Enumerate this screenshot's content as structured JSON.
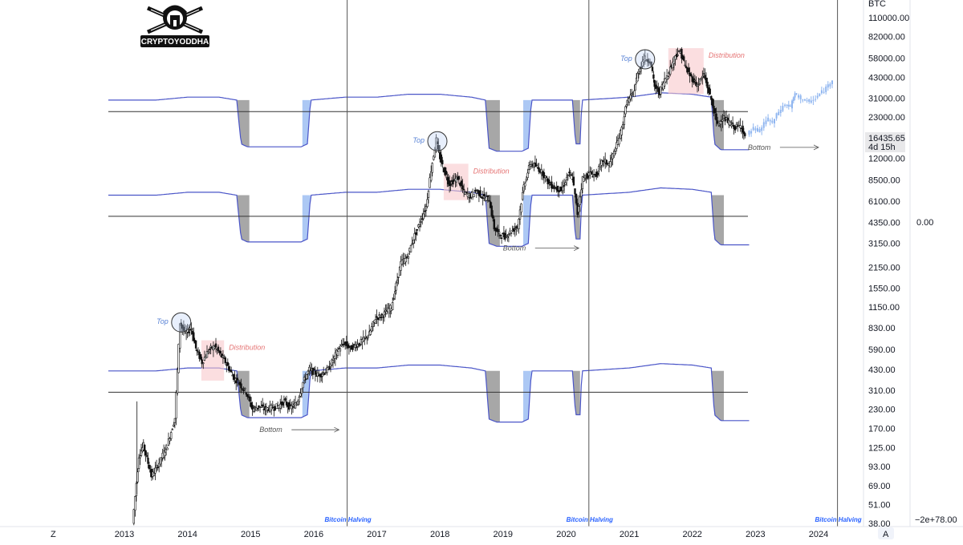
{
  "logo": {
    "text": "CRYPTOYODDHA"
  },
  "axis_unit": "BTC",
  "right_axis": {
    "label": "0.00",
    "bottom_label": "−2e+78.00"
  },
  "corner_buttons": {
    "left": "Z",
    "right": "A"
  },
  "last_price": {
    "value": "16435.65",
    "countdown": "4d 15h"
  },
  "colors": {
    "band_line": "#4a55c8",
    "band_fill_gray": "#8a8a8a",
    "band_fill_blue": "#90b6f0",
    "candle": "#111111",
    "top_marker": "#2962ff",
    "distribution_fill": "#f9c8cc",
    "distribution_text": "#e57373",
    "halving_line": "#555555",
    "halving_text": "#2962ff",
    "projection": "#90b6f0"
  },
  "chart_data": {
    "type": "candlestick",
    "title": "",
    "xlabel": "",
    "ylabel": "BTC",
    "y_scale": "log",
    "ylim": [
      36,
      130000
    ],
    "xlim": [
      2012.5,
      2025.2
    ],
    "grid": false,
    "x_ticks": [
      "2013",
      "2014",
      "2015",
      "2016",
      "2017",
      "2018",
      "2019",
      "2020",
      "2021",
      "2022",
      "2023",
      "2024"
    ],
    "y_ticks": [
      "110000.00",
      "82000.00",
      "58000.00",
      "43000.00",
      "31000.00",
      "23000.00",
      "12000.00",
      "8500.00",
      "6100.00",
      "4350.00",
      "3150.00",
      "2150.00",
      "1550.00",
      "1150.00",
      "830.00",
      "590.00",
      "430.00",
      "310.00",
      "230.00",
      "170.00",
      "125.00",
      "93.00",
      "69.00",
      "51.00",
      "38.00"
    ],
    "price_path": [
      [
        2013.15,
        38
      ],
      [
        2013.25,
        110
      ],
      [
        2013.32,
        130
      ],
      [
        2013.45,
        80
      ],
      [
        2013.55,
        95
      ],
      [
        2013.7,
        130
      ],
      [
        2013.82,
        200
      ],
      [
        2013.9,
        900
      ],
      [
        2013.98,
        760
      ],
      [
        2014.08,
        820
      ],
      [
        2014.15,
        600
      ],
      [
        2014.25,
        480
      ],
      [
        2014.35,
        580
      ],
      [
        2014.45,
        620
      ],
      [
        2014.6,
        500
      ],
      [
        2014.75,
        380
      ],
      [
        2014.85,
        340
      ],
      [
        2014.95,
        300
      ],
      [
        2015.05,
        230
      ],
      [
        2015.15,
        240
      ],
      [
        2015.25,
        230
      ],
      [
        2015.35,
        235
      ],
      [
        2015.45,
        240
      ],
      [
        2015.55,
        260
      ],
      [
        2015.65,
        235
      ],
      [
        2015.75,
        250
      ],
      [
        2015.85,
        350
      ],
      [
        2015.95,
        430
      ],
      [
        2016.1,
        390
      ],
      [
        2016.25,
        430
      ],
      [
        2016.4,
        580
      ],
      [
        2016.5,
        650
      ],
      [
        2016.6,
        600
      ],
      [
        2016.75,
        650
      ],
      [
        2016.9,
        750
      ],
      [
        2017.0,
        970
      ],
      [
        2017.1,
        1000
      ],
      [
        2017.25,
        1150
      ],
      [
        2017.4,
        2300
      ],
      [
        2017.5,
        2500
      ],
      [
        2017.6,
        3400
      ],
      [
        2017.7,
        4300
      ],
      [
        2017.8,
        5600
      ],
      [
        2017.88,
        10000
      ],
      [
        2017.96,
        16000
      ],
      [
        2018.0,
        13000
      ],
      [
        2018.08,
        10000
      ],
      [
        2018.17,
        8000
      ],
      [
        2018.3,
        8800
      ],
      [
        2018.4,
        7000
      ],
      [
        2018.5,
        6600
      ],
      [
        2018.6,
        7200
      ],
      [
        2018.7,
        6500
      ],
      [
        2018.8,
        6300
      ],
      [
        2018.88,
        4000
      ],
      [
        2018.96,
        3600
      ],
      [
        2019.05,
        3500
      ],
      [
        2019.15,
        3800
      ],
      [
        2019.25,
        4100
      ],
      [
        2019.35,
        7800
      ],
      [
        2019.45,
        11000
      ],
      [
        2019.55,
        10500
      ],
      [
        2019.65,
        9500
      ],
      [
        2019.75,
        8000
      ],
      [
        2019.85,
        7500
      ],
      [
        2019.95,
        7200
      ],
      [
        2020.05,
        9300
      ],
      [
        2020.12,
        8800
      ],
      [
        2020.2,
        5000
      ],
      [
        2020.28,
        8700
      ],
      [
        2020.4,
        9400
      ],
      [
        2020.5,
        9200
      ],
      [
        2020.6,
        11700
      ],
      [
        2020.7,
        10800
      ],
      [
        2020.8,
        13800
      ],
      [
        2020.9,
        19000
      ],
      [
        2020.98,
        29000
      ],
      [
        2021.08,
        33000
      ],
      [
        2021.15,
        45000
      ],
      [
        2021.25,
        58000
      ],
      [
        2021.35,
        56000
      ],
      [
        2021.42,
        37000
      ],
      [
        2021.5,
        34000
      ],
      [
        2021.58,
        41000
      ],
      [
        2021.65,
        47000
      ],
      [
        2021.75,
        61000
      ],
      [
        2021.83,
        64000
      ],
      [
        2021.92,
        49000
      ],
      [
        2022.0,
        43000
      ],
      [
        2022.1,
        38000
      ],
      [
        2022.2,
        45000
      ],
      [
        2022.32,
        30000
      ],
      [
        2022.42,
        20000
      ],
      [
        2022.5,
        23000
      ],
      [
        2022.6,
        21000
      ],
      [
        2022.7,
        19500
      ],
      [
        2022.8,
        20000
      ],
      [
        2022.85,
        16435
      ]
    ],
    "projection_path": [
      [
        2022.9,
        17500
      ],
      [
        2023.0,
        19000
      ],
      [
        2023.1,
        18500
      ],
      [
        2023.2,
        22000
      ],
      [
        2023.3,
        21000
      ],
      [
        2023.4,
        25000
      ],
      [
        2023.5,
        28000
      ],
      [
        2023.58,
        27000
      ],
      [
        2023.65,
        33000
      ],
      [
        2023.75,
        31000
      ],
      [
        2023.85,
        29000
      ],
      [
        2023.95,
        30000
      ],
      [
        2024.05,
        33000
      ],
      [
        2024.15,
        36000
      ],
      [
        2024.25,
        42000
      ]
    ],
    "horizontal_lines": [
      25000,
      4800,
      300
    ],
    "halving_lines": [
      2016.53,
      2020.36,
      2024.3
    ],
    "band_template": {
      "note": "High band line offsets (log10) relative to each band baseline; lower pit offsets",
      "segments": [
        [
          2012.5,
          0.0
        ],
        [
          2013.5,
          0.0
        ],
        [
          2014.0,
          0.02
        ],
        [
          2014.5,
          0.02
        ],
        [
          2014.78,
          0.0
        ],
        [
          2014.85,
          -0.3
        ],
        [
          2014.95,
          -0.32
        ],
        [
          2015.0,
          -0.32
        ],
        [
          2015.8,
          -0.32
        ],
        [
          2015.9,
          -0.3
        ],
        [
          2015.95,
          0.0
        ],
        [
          2016.5,
          0.02
        ],
        [
          2017.0,
          0.02
        ],
        [
          2017.5,
          0.04
        ],
        [
          2018.0,
          0.04
        ],
        [
          2018.5,
          0.02
        ],
        [
          2018.72,
          0.0
        ],
        [
          2018.78,
          -0.33
        ],
        [
          2018.9,
          -0.35
        ],
        [
          2019.3,
          -0.35
        ],
        [
          2019.4,
          -0.33
        ],
        [
          2019.45,
          0.0
        ],
        [
          2020.0,
          0.0
        ],
        [
          2020.1,
          0.0
        ],
        [
          2020.15,
          -0.3
        ],
        [
          2020.22,
          -0.3
        ],
        [
          2020.25,
          0.0
        ],
        [
          2021.0,
          0.02
        ],
        [
          2021.5,
          0.05
        ],
        [
          2022.0,
          0.04
        ],
        [
          2022.3,
          0.02
        ],
        [
          2022.35,
          -0.3
        ],
        [
          2022.45,
          -0.34
        ],
        [
          2022.9,
          -0.34
        ]
      ],
      "gray_fills": [
        [
          2014.78,
          2014.98
        ],
        [
          2018.72,
          2018.95
        ],
        [
          2020.1,
          2020.22
        ],
        [
          2022.3,
          2022.5
        ]
      ],
      "blue_fills": [
        [
          2015.82,
          2015.98
        ],
        [
          2019.32,
          2019.47
        ]
      ]
    },
    "bands": [
      {
        "name": "upper",
        "baseline": 30000
      },
      {
        "name": "middle",
        "baseline": 6700
      },
      {
        "name": "lower",
        "baseline": 420
      }
    ],
    "annotations": {
      "tops": [
        {
          "label": "Top",
          "x": 2013.9,
          "y": 950
        },
        {
          "label": "Top",
          "x": 2017.96,
          "y": 16500
        },
        {
          "label": "Top",
          "x": 2021.25,
          "y": 60000
        }
      ],
      "distributions": [
        {
          "label": "Distribution",
          "x0": 2014.22,
          "x1": 2014.58,
          "y0": 360,
          "y1": 680
        },
        {
          "label": "Distribution",
          "x0": 2018.06,
          "x1": 2018.45,
          "y0": 6200,
          "y1": 11000
        },
        {
          "label": "Distribution",
          "x0": 2021.62,
          "x1": 2022.18,
          "y0": 33000,
          "y1": 68000
        }
      ],
      "bottoms": [
        {
          "label": "Bottom",
          "x": 2015.14,
          "y": 160,
          "arrow_to": 2016.4
        },
        {
          "label": "Bottom",
          "x": 2019.0,
          "y": 2800,
          "arrow_to": 2020.2
        },
        {
          "label": "Bottom",
          "x": 2022.88,
          "y": 13700,
          "arrow_to": 2024.0
        }
      ],
      "halving_labels": [
        {
          "label": "Bitcoin Halving",
          "x": 2016.53
        },
        {
          "label": "Bitcoin Halving",
          "x": 2020.36
        },
        {
          "label": "Bitcoin Halving",
          "x": 2024.3
        }
      ]
    }
  }
}
